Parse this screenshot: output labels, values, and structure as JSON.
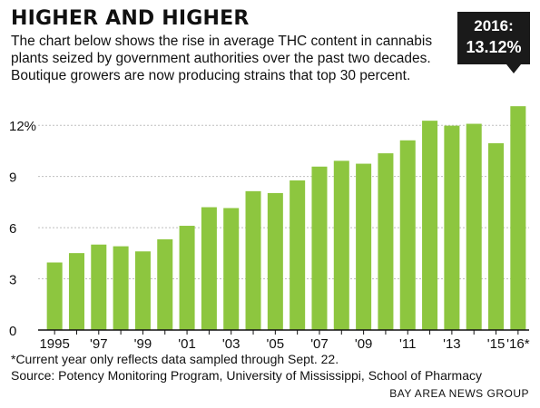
{
  "title": "HIGHER AND HIGHER",
  "subtitle": "The chart below shows the rise in average THC content in cannabis plants seized by government authorities over the past two decades. Boutique growers are now producing strains that top 30 percent.",
  "callout": {
    "year": "2016:",
    "value": "13.12%"
  },
  "footnote": "*Current year only reflects data sampled through Sept. 22.",
  "source": "Source: Potency Monitoring Program, University of Mississippi, School of Pharmacy",
  "credit": "BAY AREA NEWS GROUP",
  "colors": {
    "bar": "#8dc63f",
    "grid": "#bfbfbf",
    "axis": "#111111",
    "callout": "#1a1a1a"
  },
  "chart_data": {
    "type": "bar",
    "title": "HIGHER AND HIGHER",
    "ylim": [
      0,
      13.5
    ],
    "y_ticks": [
      0,
      3,
      6,
      9,
      12
    ],
    "y_tick_labels": [
      "0",
      "3",
      "6",
      "9",
      "12%"
    ],
    "grid": true,
    "categories": [
      "1995",
      "1996",
      "1997",
      "1998",
      "1999",
      "2000",
      "2001",
      "2002",
      "2003",
      "2004",
      "2005",
      "2006",
      "2007",
      "2008",
      "2009",
      "2010",
      "2011",
      "2012",
      "2013",
      "2014",
      "2015",
      "2016*"
    ],
    "x_tick_labels": [
      "1995",
      "",
      "'97",
      "",
      "'99",
      "",
      "'01",
      "",
      "'03",
      "",
      "'05",
      "",
      "'07",
      "",
      "'09",
      "",
      "'11",
      "",
      "'13",
      "",
      "'15",
      "'16*"
    ],
    "values": [
      3.96,
      4.51,
      5.01,
      4.91,
      4.61,
      5.32,
      6.11,
      7.2,
      7.15,
      8.14,
      8.03,
      8.77,
      9.58,
      9.92,
      9.75,
      10.36,
      11.12,
      12.27,
      11.98,
      12.09,
      10.95,
      13.12
    ]
  }
}
